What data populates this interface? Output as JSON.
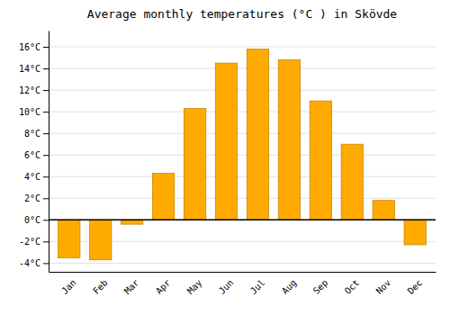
{
  "chart_data": {
    "type": "bar",
    "title": "Average monthly temperatures (°C ) in Skövde",
    "categories": [
      "Jan",
      "Feb",
      "Mar",
      "Apr",
      "May",
      "Jun",
      "Jul",
      "Aug",
      "Sep",
      "Oct",
      "Nov",
      "Dec"
    ],
    "values": [
      -3.5,
      -3.7,
      -0.4,
      4.3,
      10.3,
      14.5,
      15.8,
      14.8,
      11.0,
      7.0,
      1.8,
      -2.3
    ],
    "color": "#FFAA00",
    "ylim": [
      -4.8,
      17.5
    ],
    "yticks": [
      {
        "value": -4,
        "label": "-4°C"
      },
      {
        "value": -2,
        "label": "-2°C"
      },
      {
        "value": 0,
        "label": "0°C"
      },
      {
        "value": 2,
        "label": "2°C"
      },
      {
        "value": 4,
        "label": "4°C"
      },
      {
        "value": 6,
        "label": "6°C"
      },
      {
        "value": 8,
        "label": "8°C"
      },
      {
        "value": 10,
        "label": "10°C"
      },
      {
        "value": 12,
        "label": "12°C"
      },
      {
        "value": 14,
        "label": "14°C"
      },
      {
        "value": 16,
        "label": "16°C"
      }
    ],
    "grid": true
  }
}
